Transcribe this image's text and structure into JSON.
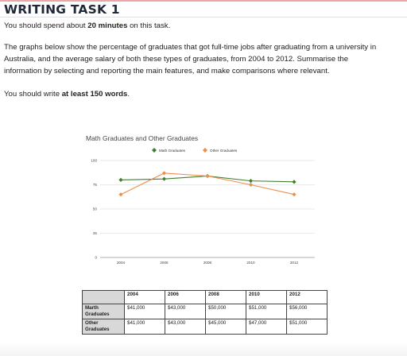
{
  "task": {
    "heading": "WRITING TASK 1",
    "time_pre": "You should spend about ",
    "time_bold": "20 minutes",
    "time_post": " on this task.",
    "prompt_line1": "The graphs below show the percentage of graduates that got full-time jobs after graduating from a university in",
    "prompt_line2": "Australia, and the average salary of both these types of graduates, from 2004 to 2012. Summarise the",
    "prompt_line3": "information by selecting and reporting the main features, and make comparisons where relevant.",
    "words_pre": "You should write ",
    "words_bold": "at least 150 words",
    "words_post": "."
  },
  "chart_data": {
    "type": "line",
    "title": "Math Graduates and Other Graduates",
    "x": [
      2004,
      2006,
      2008,
      2010,
      2012
    ],
    "x_tick_labels": [
      "2004",
      "2006",
      "2008",
      "2010",
      "2012"
    ],
    "y_ticks": [
      0,
      25,
      50,
      75,
      100
    ],
    "ylim": [
      0,
      100
    ],
    "grid": true,
    "legend_placement": "top",
    "series": [
      {
        "name": "Math Graduates",
        "values": [
          80,
          81,
          84,
          79,
          78
        ],
        "color": "#3f7f2f",
        "marker": "diamond"
      },
      {
        "name": "Other Graduates",
        "values": [
          65,
          87,
          84,
          75,
          65
        ],
        "color": "#f28c4a",
        "marker": "diamond"
      }
    ]
  },
  "salary_table": {
    "columns": [
      "2004",
      "2006",
      "2008",
      "2010",
      "2012"
    ],
    "rows": [
      {
        "label": "Marth Graduates",
        "values": [
          "$41,000",
          "$43,000",
          "$50,000",
          "$51,000",
          "$56,000"
        ]
      },
      {
        "label": "Other Graduates",
        "values": [
          "$41,000",
          "$43,000",
          "$45,000",
          "$47,000",
          "$51,000"
        ]
      }
    ]
  }
}
